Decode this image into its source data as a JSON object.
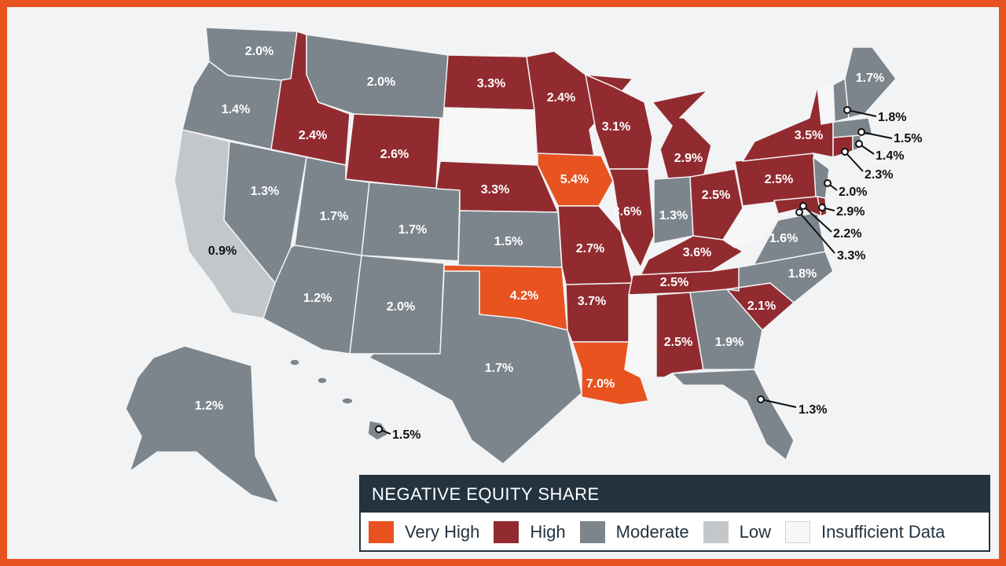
{
  "legend": {
    "title": "NEGATIVE EQUITY SHARE",
    "items": [
      {
        "label": "Very High",
        "color": "#e8531f"
      },
      {
        "label": "High",
        "color": "#922b30"
      },
      {
        "label": "Moderate",
        "color": "#7c848c"
      },
      {
        "label": "Low",
        "color": "#c3c7ca"
      },
      {
        "label": "Insufficient Data",
        "color": "#f7f7f7"
      }
    ]
  },
  "states": {
    "wa": "2.0%",
    "or": "1.4%",
    "ca": "0.9%",
    "id": "2.4%",
    "nv": "1.3%",
    "mt": "2.0%",
    "wy": "2.6%",
    "ut": "1.7%",
    "az": "1.2%",
    "co": "1.7%",
    "nm": "2.0%",
    "nd": "3.3%",
    "sd": "",
    "ne": "3.3%",
    "ks": "1.5%",
    "ok": "4.2%",
    "tx": "1.7%",
    "mn": "2.4%",
    "ia": "5.4%",
    "mo": "2.7%",
    "ar": "3.7%",
    "la": "7.0%",
    "wi": "3.1%",
    "il": "3.6%",
    "mi": "2.9%",
    "in": "1.3%",
    "oh": "2.5%",
    "ky": "3.6%",
    "tn": "2.5%",
    "ms": "",
    "al": "2.5%",
    "ga": "1.9%",
    "fl": "1.3%",
    "sc": "2.1%",
    "nc": "1.8%",
    "va": "1.6%",
    "wv": "",
    "pa": "2.5%",
    "ny": "3.5%",
    "me": "1.7%",
    "vt": "",
    "nh": "1.8%",
    "ma": "1.5%",
    "ri": "1.4%",
    "ct": "2.3%",
    "nj": "2.0%",
    "de": "2.9%",
    "md": "2.2%",
    "dc": "3.3%",
    "ak": "1.2%",
    "hi": "1.5%"
  }
}
